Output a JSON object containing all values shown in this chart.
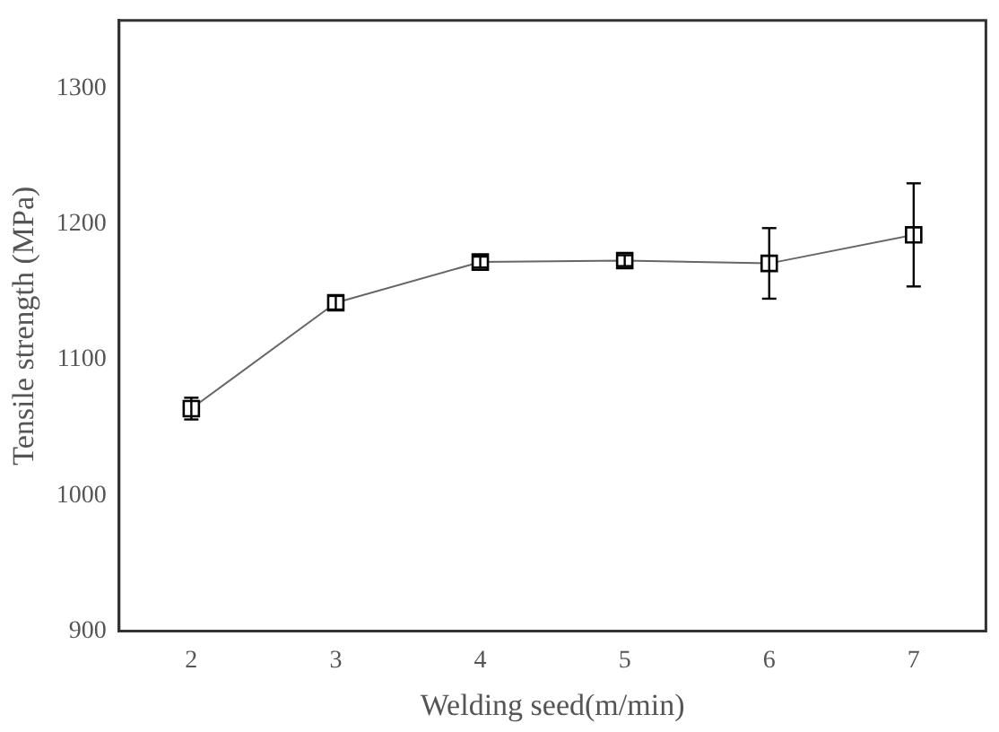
{
  "chart_data": {
    "type": "line",
    "xlabel": "Welding seed(m/min)",
    "ylabel": "Tensile strength (MPa)",
    "x": [
      2,
      3,
      4,
      5,
      6,
      7
    ],
    "series": [
      {
        "color": "#000000",
        "values": [
          1064,
          1142,
          1172,
          1173,
          1171,
          1192
        ],
        "errors": [
          8,
          5,
          4,
          4,
          26,
          38
        ]
      }
    ],
    "xlim": [
      1.5,
      7.5
    ],
    "xticks": [
      2,
      3,
      4,
      5,
      6,
      7
    ],
    "ylim": [
      900,
      1350
    ],
    "yticks": [
      900,
      1000,
      1100,
      1200,
      1300
    ],
    "grid": false,
    "legend": false,
    "marker": "square",
    "line_style": "solid"
  }
}
